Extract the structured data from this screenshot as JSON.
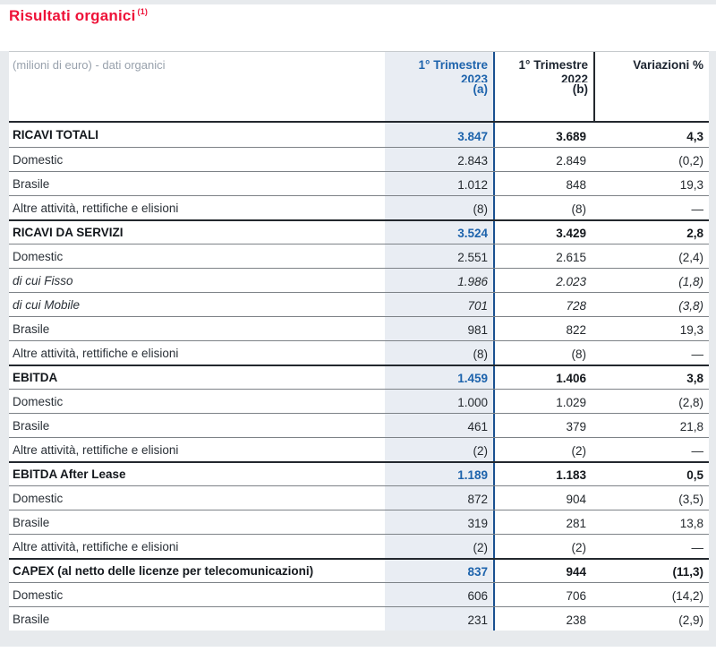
{
  "title": {
    "text": "Risultati organici",
    "footnote": "(1)"
  },
  "colors": {
    "title_red": "#ee1238",
    "accent_blue": "#1d63ac",
    "column_divider_blue": "#1a5190",
    "col2023_bg": "#e9edf3",
    "page_gray": "#e7eaed",
    "dark_text": "#24292e",
    "muted_header_text": "#98a1ac"
  },
  "table": {
    "corner_label": "(milioni di euro) - dati organici",
    "columns": [
      {
        "line1": "1° Trimestre",
        "year": "2023",
        "sub": "(a)"
      },
      {
        "line1": "1° Trimestre",
        "year": "2022",
        "sub": "(b)"
      },
      {
        "line1": "Variazioni %"
      }
    ],
    "rows": [
      {
        "label": "RICAVI TOTALI",
        "style": "section",
        "v2023": "3.847",
        "v2022": "3.689",
        "variation": "4,3"
      },
      {
        "label": "Domestic",
        "style": "plain",
        "v2023": "2.843",
        "v2022": "2.849",
        "variation": "(0,2)"
      },
      {
        "label": "Brasile",
        "style": "plain",
        "v2023": "1.012",
        "v2022": "848",
        "variation": "19,3"
      },
      {
        "label": "Altre attività, rettifiche e elisioni",
        "style": "plain",
        "v2023": "(8)",
        "v2022": "(8)",
        "variation": "—"
      },
      {
        "label": "RICAVI DA SERVIZI",
        "style": "section",
        "v2023": "3.524",
        "v2022": "3.429",
        "variation": "2,8"
      },
      {
        "label": "Domestic",
        "style": "plain",
        "v2023": "2.551",
        "v2022": "2.615",
        "variation": "(2,4)"
      },
      {
        "label": "di cui Fisso",
        "style": "italic",
        "v2023": "1.986",
        "v2022": "2.023",
        "variation": "(1,8)"
      },
      {
        "label": "di cui Mobile",
        "style": "italic",
        "v2023": "701",
        "v2022": "728",
        "variation": "(3,8)"
      },
      {
        "label": "Brasile",
        "style": "plain",
        "v2023": "981",
        "v2022": "822",
        "variation": "19,3"
      },
      {
        "label": "Altre attività, rettifiche e elisioni",
        "style": "plain",
        "v2023": "(8)",
        "v2022": "(8)",
        "variation": "—"
      },
      {
        "label": "EBITDA",
        "style": "section",
        "v2023": "1.459",
        "v2022": "1.406",
        "variation": "3,8"
      },
      {
        "label": "Domestic",
        "style": "plain",
        "v2023": "1.000",
        "v2022": "1.029",
        "variation": "(2,8)"
      },
      {
        "label": "Brasile",
        "style": "plain",
        "v2023": "461",
        "v2022": "379",
        "variation": "21,8"
      },
      {
        "label": "Altre attività, rettifiche e elisioni",
        "style": "plain",
        "v2023": "(2)",
        "v2022": "(2)",
        "variation": "—"
      },
      {
        "label": "EBITDA After Lease",
        "style": "section",
        "v2023": "1.189",
        "v2022": "1.183",
        "variation": "0,5"
      },
      {
        "label": "Domestic",
        "style": "plain",
        "v2023": "872",
        "v2022": "904",
        "variation": "(3,5)"
      },
      {
        "label": "Brasile",
        "style": "plain",
        "v2023": "319",
        "v2022": "281",
        "variation": "13,8"
      },
      {
        "label": "Altre attività, rettifiche e elisioni",
        "style": "plain",
        "v2023": "(2)",
        "v2022": "(2)",
        "variation": "—"
      },
      {
        "label": "CAPEX (al netto delle licenze per telecomunicazioni)",
        "style": "section",
        "v2023": "837",
        "v2022": "944",
        "variation": "(11,3)"
      },
      {
        "label": "Domestic",
        "style": "plain",
        "v2023": "606",
        "v2022": "706",
        "variation": "(14,2)"
      },
      {
        "label": "Brasile",
        "style": "plain",
        "v2023": "231",
        "v2022": "238",
        "variation": "(2,9)"
      }
    ]
  }
}
